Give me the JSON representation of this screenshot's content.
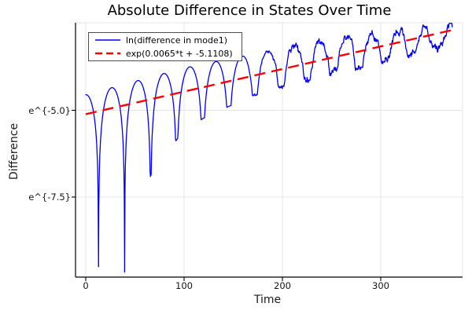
{
  "chart_data": {
    "type": "line",
    "title": "Absolute Difference in States Over Time",
    "xlabel": "Time",
    "ylabel": "Difference",
    "x_axis": {
      "ticks": [
        0,
        100,
        200,
        300
      ],
      "range": [
        -10,
        383
      ]
    },
    "y_axis": {
      "scale": "log-e",
      "ticks": [
        {
          "label": "e^{-5.0}",
          "ln_value": -5.0
        },
        {
          "label": "e^{-7.5}",
          "ln_value": -7.5
        }
      ],
      "range_ln": [
        -9.81,
        -2.48
      ]
    },
    "grid": true,
    "grid_color": "#e4e4e4",
    "background": "#ffffff",
    "legend_position": "top-left",
    "series": [
      {
        "name": "ln(difference in mode1)",
        "color": "#0000ee",
        "style": "solid",
        "width": 1.3,
        "model": {
          "description": "ln|envelope*sin(pi*(t-t0)/P)|: exponentially growing oscillation with cusps at zero crossings, clamped by a rising noise floor, jitter after t~155",
          "envelope_slope": 0.0065,
          "envelope_intercept": -5.1108,
          "offset_points": [
            [
              0,
              0.56
            ],
            [
              100,
              0.68
            ],
            [
              140,
              0.65
            ],
            [
              180,
              0.62
            ],
            [
              230,
              0.56
            ],
            [
              260,
              0.5
            ],
            [
              310,
              0.37
            ],
            [
              350,
              0.22
            ],
            [
              375,
              0.12
            ]
          ],
          "cusp_period": 26.5,
          "first_cusp_t": 13,
          "t_start": 0,
          "t_end": 373,
          "floor_gap_points": [
            [
              0,
              4.35
            ],
            [
              30,
              4.65
            ],
            [
              45,
              4.9
            ],
            [
              66,
              2.2
            ],
            [
              93,
              1.32
            ],
            [
              119,
              0.9
            ],
            [
              146,
              0.72
            ],
            [
              172,
              0.58
            ],
            [
              210,
              0.45
            ],
            [
              280,
              0.42
            ],
            [
              375,
              0.4
            ]
          ],
          "noise_start_t": 155,
          "noise_full_t": 215,
          "noise_amp_max": 0.16
        }
      },
      {
        "name": "exp(0.0065*t + -5.1108)",
        "color": "#ff0000",
        "style": "dashed",
        "width": 2.4,
        "slope": 0.0065,
        "intercept": -5.1108,
        "t_start": 0,
        "t_end": 373
      }
    ]
  }
}
